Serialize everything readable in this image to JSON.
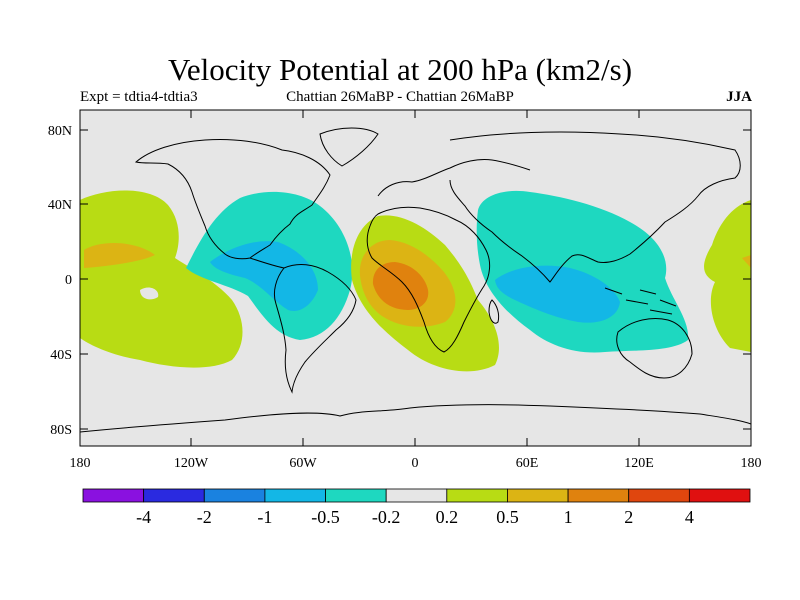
{
  "title": "Velocity Potential at 200 hPa (km2/s)",
  "subtitle_left": "Expt = tdtia4-tdtia3",
  "subtitle_center": "Chattian  26MaBP - Chattian  26MaBP",
  "subtitle_right": "JJA",
  "y_axis_labels": [
    "80N",
    "40N",
    "0",
    "40S",
    "80S"
  ],
  "x_axis_labels": [
    "180",
    "120W",
    "60W",
    "0",
    "60E",
    "120E",
    "180"
  ],
  "colorbar": {
    "colors": [
      "#8a11e0",
      "#2a2ae0",
      "#1a82e0",
      "#13b7e6",
      "#1ed8c0",
      "#e6e6e6",
      "#b8dc14",
      "#dcb414",
      "#e0820e",
      "#e0460e",
      "#e01010"
    ],
    "labels": [
      "-4",
      "-2",
      "-1",
      "-0.5",
      "-0.2",
      "0.2",
      "0.5",
      "1",
      "2",
      "4"
    ]
  },
  "colors": {
    "background": "#e6e6e6",
    "neg_light": "#1ed8c0",
    "neg_mid": "#13b7e6",
    "pos_light": "#b8dc14",
    "pos_mid": "#dcb414",
    "pos_high": "#e0820e"
  }
}
